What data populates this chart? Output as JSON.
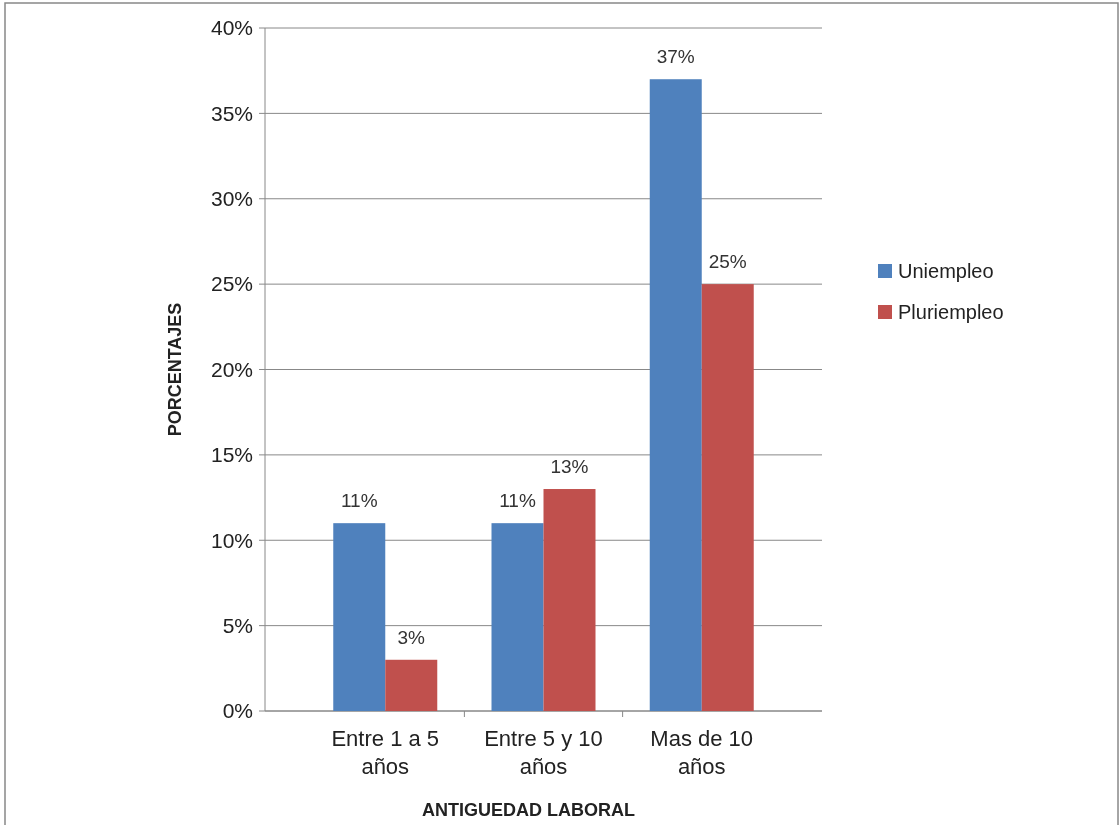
{
  "chart_data": {
    "type": "bar",
    "xlabel": "ANTIGUEDAD LABORAL",
    "ylabel": "PORCENTAJES",
    "categories": [
      "Entre 1 a 5 años",
      "Entre 5 y 10 años",
      "Mas de 10 años"
    ],
    "series": [
      {
        "name": "Uniempleo",
        "color": "#4f81bd",
        "values": [
          11,
          11,
          37
        ],
        "value_labels": [
          "11%",
          "11%",
          "37%"
        ]
      },
      {
        "name": "Pluriempleo",
        "color": "#c0504d",
        "values": [
          3,
          13,
          25
        ],
        "value_labels": [
          "3%",
          "13%",
          "25%"
        ]
      }
    ],
    "ylim": [
      0,
      40
    ],
    "yticks": [
      {
        "value": 0,
        "label": "0%"
      },
      {
        "value": 5,
        "label": "5%"
      },
      {
        "value": 10,
        "label": "10%"
      },
      {
        "value": 15,
        "label": "15%"
      },
      {
        "value": 20,
        "label": "20%"
      },
      {
        "value": 25,
        "label": "25%"
      },
      {
        "value": 30,
        "label": "30%"
      },
      {
        "value": 35,
        "label": "35%"
      },
      {
        "value": 40,
        "label": "40%"
      }
    ],
    "grid": "y",
    "legend": "right"
  }
}
